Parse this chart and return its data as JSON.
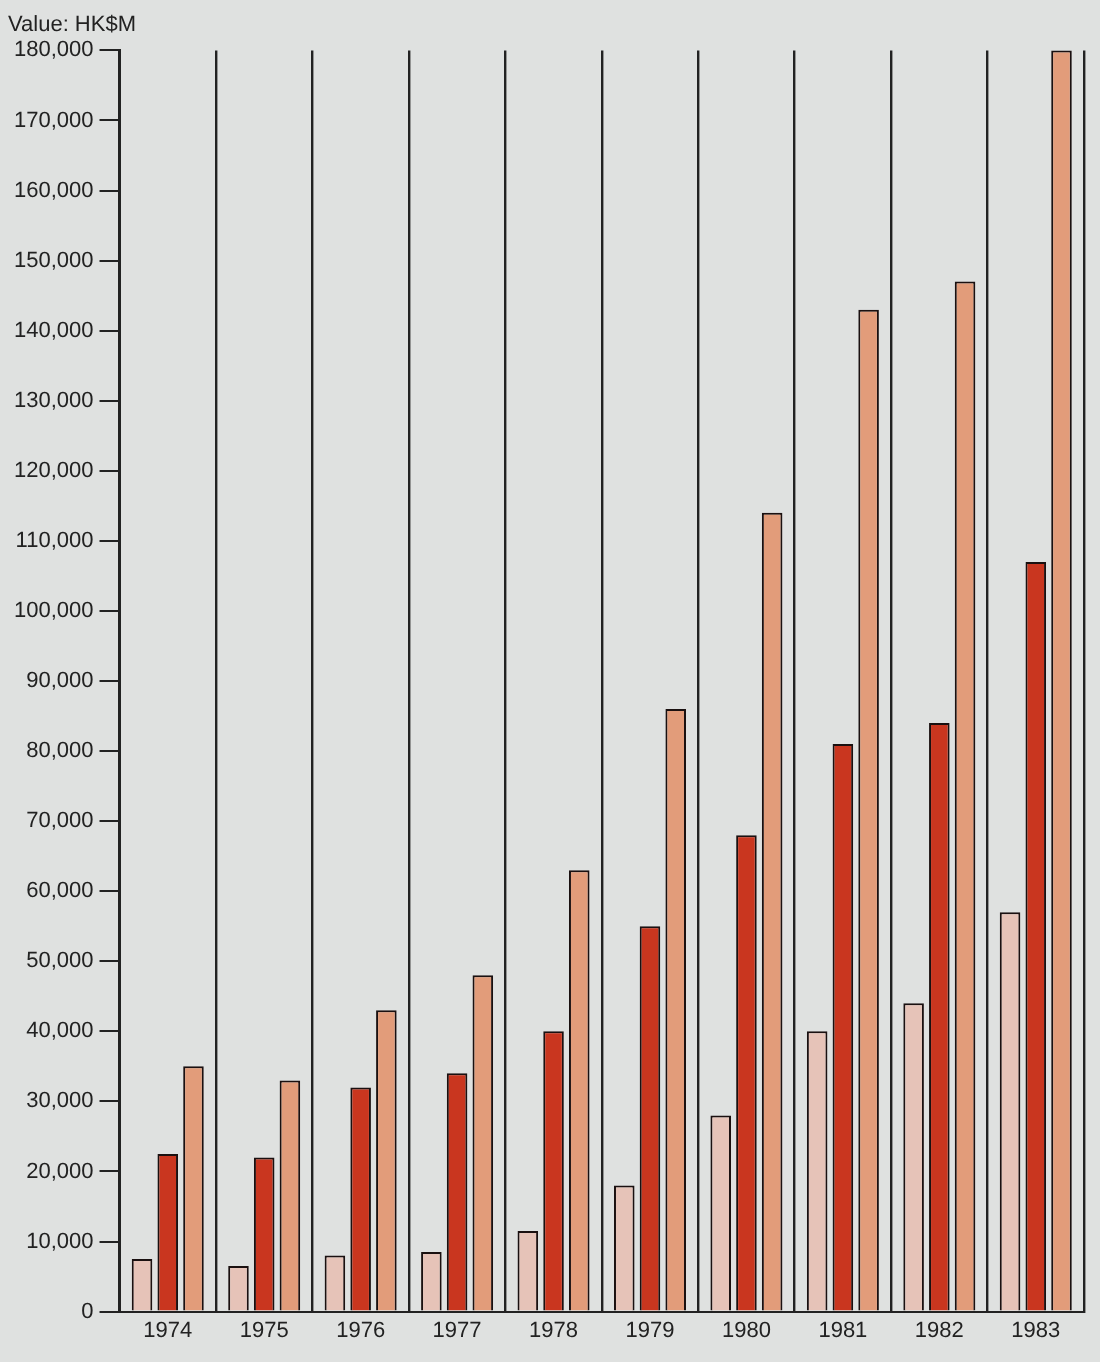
{
  "chart_data": {
    "type": "bar",
    "ylabel": "Value: HK$M",
    "categories": [
      "1974",
      "1975",
      "1976",
      "1977",
      "1978",
      "1979",
      "1980",
      "1981",
      "1982",
      "1983"
    ],
    "series": [
      {
        "color": "#e6c3b8",
        "values": [
          7500,
          6500,
          8000,
          8500,
          11500,
          18000,
          28000,
          40000,
          44000,
          57000
        ]
      },
      {
        "color": "#c9361f",
        "values": [
          22500,
          22000,
          32000,
          34000,
          40000,
          55000,
          68000,
          81000,
          84000,
          107000
        ]
      },
      {
        "color": "#e29c7a",
        "values": [
          35000,
          33000,
          43000,
          48000,
          63000,
          86000,
          114000,
          143000,
          147000,
          180000
        ]
      }
    ],
    "ylim": [
      0,
      180000
    ],
    "yticks": [
      0,
      {
        "value": 10000,
        "label": "10,000"
      },
      {
        "value": 20000,
        "label": "20,000"
      },
      {
        "value": 30000,
        "label": "30,000"
      },
      {
        "value": 40000,
        "label": "40,000"
      },
      {
        "value": 50000,
        "label": "50,000"
      },
      {
        "value": 60000,
        "label": "60,000"
      },
      {
        "value": 70000,
        "label": "70,000"
      },
      {
        "value": 80000,
        "label": "80,000"
      },
      {
        "value": 90000,
        "label": "90,000"
      },
      {
        "value": 100000,
        "label": "100,000"
      },
      {
        "value": 110000,
        "label": "110,000"
      },
      {
        "value": 120000,
        "label": "120,000"
      },
      {
        "value": 130000,
        "label": "130,000"
      },
      {
        "value": 140000,
        "label": "140,000"
      },
      {
        "value": 150000,
        "label": "150,000"
      },
      {
        "value": 160000,
        "label": "160,000"
      },
      {
        "value": 170000,
        "label": "170,000"
      },
      {
        "value": 180000,
        "label": "180,000"
      }
    ],
    "grid": "x"
  }
}
